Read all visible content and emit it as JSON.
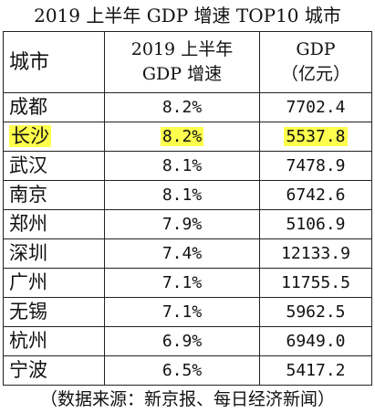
{
  "title": "2019 上半年 GDP 增速 TOP10 城市",
  "table": {
    "headers": {
      "city": "城市",
      "growth_line1": "2019 上半年",
      "growth_line2": "GDP 增速",
      "gdp_line1": "GDP",
      "gdp_line2": "（亿元）"
    },
    "rows": [
      {
        "city": "成都",
        "growth": "8.2%",
        "gdp": "7702.4"
      },
      {
        "city": "长沙",
        "growth": "8.2%",
        "gdp": "5537.8",
        "highlight": true
      },
      {
        "city": "武汉",
        "growth": "8.1%",
        "gdp": "7478.9"
      },
      {
        "city": "南京",
        "growth": "8.1%",
        "gdp": "6742.6"
      },
      {
        "city": "郑州",
        "growth": "7.9%",
        "gdp": "5106.9"
      },
      {
        "city": "深圳",
        "growth": "7.4%",
        "gdp": "12133.9"
      },
      {
        "city": "广州",
        "growth": "7.1%",
        "gdp": "11755.5"
      },
      {
        "city": "无锡",
        "growth": "7.1%",
        "gdp": "5962.5"
      },
      {
        "city": "杭州",
        "growth": "6.9%",
        "gdp": "6949.0"
      },
      {
        "city": "宁波",
        "growth": "6.5%",
        "gdp": "5417.2"
      }
    ]
  },
  "source": "（数据来源：新京报、每日经济新闻）",
  "colors": {
    "highlight": "#ffff4d",
    "border": "#222222",
    "text": "#111111"
  }
}
